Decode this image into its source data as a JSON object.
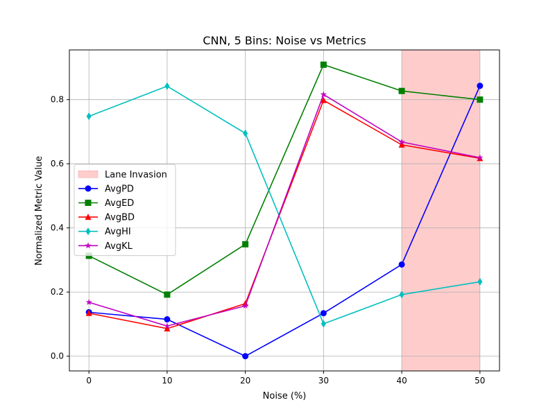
{
  "chart_data": {
    "type": "line",
    "title": "CNN, 5 Bins: Noise vs Metrics",
    "xlabel": "Noise (%)",
    "ylabel": "Normalized Metric Value",
    "x": [
      0,
      10,
      20,
      30,
      40,
      50
    ],
    "xlim": [
      -2.5,
      52.5
    ],
    "ylim": [
      -0.046,
      0.955
    ],
    "xticks": [
      0,
      10,
      20,
      30,
      40,
      50
    ],
    "yticks": [
      0.0,
      0.2,
      0.4,
      0.6,
      0.8
    ],
    "ytick_labels": [
      "0.0",
      "0.2",
      "0.4",
      "0.6",
      "0.8"
    ],
    "grid": true,
    "legend_position": "center-left",
    "shaded_region": {
      "label": "Lane Invasion",
      "x_start": 40,
      "x_end": 50,
      "color": "#ffcccc"
    },
    "series": [
      {
        "name": "AvgPD",
        "color": "#0000ff",
        "marker": "circle",
        "values": [
          0.137,
          0.115,
          0.0,
          0.134,
          0.286,
          0.843
        ]
      },
      {
        "name": "AvgED",
        "color": "#008000",
        "marker": "square",
        "values": [
          0.313,
          0.192,
          0.349,
          0.909,
          0.827,
          0.8
        ]
      },
      {
        "name": "AvgBD",
        "color": "#ff0000",
        "marker": "triangle",
        "values": [
          0.134,
          0.086,
          0.164,
          0.798,
          0.659,
          0.617
        ]
      },
      {
        "name": "AvgHI",
        "color": "#00bfbf",
        "marker": "diamond",
        "values": [
          0.748,
          0.842,
          0.695,
          0.101,
          0.192,
          0.232
        ]
      },
      {
        "name": "AvgKL",
        "color": "#bf00bf",
        "marker": "star",
        "values": [
          0.168,
          0.094,
          0.157,
          0.816,
          0.668,
          0.619
        ]
      }
    ]
  }
}
